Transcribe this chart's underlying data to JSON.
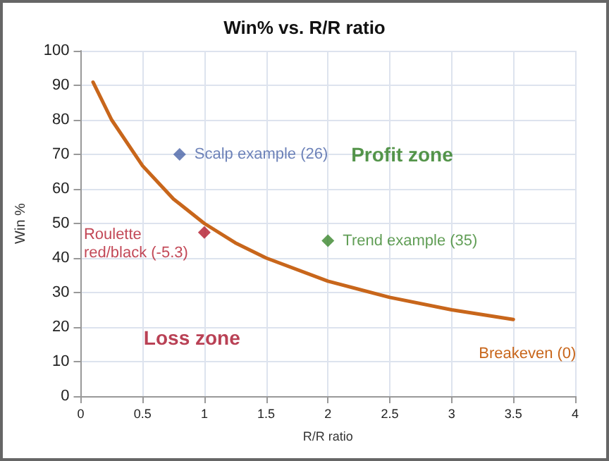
{
  "chart_data": {
    "type": "scatter",
    "title": "Win% vs. R/R ratio",
    "xlabel": "R/R ratio",
    "ylabel": "Win %",
    "xlim": [
      0,
      4
    ],
    "xticks": [
      0,
      0.5,
      1,
      1.5,
      2,
      2.5,
      3,
      3.5,
      4
    ],
    "ylim": [
      0,
      100
    ],
    "yticks": [
      0,
      10,
      20,
      30,
      40,
      50,
      60,
      70,
      80,
      90,
      100
    ],
    "grid": true,
    "legend": false,
    "annotations": [
      "Profit zone",
      "Loss zone"
    ],
    "series": [
      {
        "name": "Breakeven (0)",
        "type": "line",
        "marker": "none",
        "color": "#c8661b",
        "x": [
          0.1,
          0.25,
          0.5,
          0.75,
          1,
          1.25,
          1.5,
          2,
          2.5,
          3,
          3.5
        ],
        "values": [
          90.9,
          80,
          66.7,
          57.1,
          50,
          44.4,
          40,
          33.3,
          28.6,
          25,
          22.2
        ]
      },
      {
        "name": "Scalp example (26)",
        "marker": "diamond",
        "color": "#4a64a8",
        "x": [
          0.8
        ],
        "values": [
          70
        ]
      },
      {
        "name": "Roulette red/black (-5.3)",
        "marker": "diamond",
        "color": "#b3192c",
        "x": [
          1
        ],
        "values": [
          47.4
        ]
      },
      {
        "name": "Trend example (35)",
        "marker": "diamond",
        "color": "#3a862c",
        "x": [
          2
        ],
        "values": [
          45
        ]
      }
    ]
  }
}
